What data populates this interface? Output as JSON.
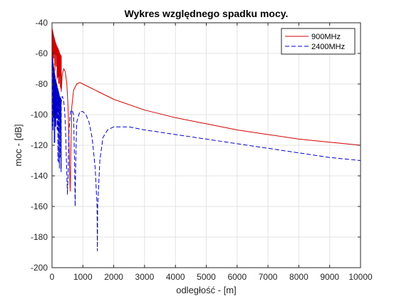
{
  "chart_data": {
    "type": "line",
    "title": "Wykres względnego spadku mocy.",
    "xlabel": "odległość - [m]",
    "ylabel": "moc - [dB]",
    "xlim": [
      0,
      10000
    ],
    "ylim": [
      -200,
      -40
    ],
    "xticks": [
      0,
      1000,
      2000,
      3000,
      4000,
      5000,
      6000,
      7000,
      8000,
      9000,
      10000
    ],
    "yticks": [
      -200,
      -180,
      -160,
      -140,
      -120,
      -100,
      -80,
      -60,
      -40
    ],
    "grid": true,
    "legend_position": "top-right",
    "series": [
      {
        "name": "900MHz",
        "color": "#d40000",
        "style": "solid",
        "envelope_start": [
          [
            10,
            -44
          ],
          [
            50,
            -48
          ],
          [
            100,
            -52
          ],
          [
            150,
            -55
          ],
          [
            200,
            -57
          ],
          [
            250,
            -60
          ],
          [
            300,
            -62
          ]
        ],
        "points": [
          [
            300,
            -85
          ],
          [
            330,
            -74
          ],
          [
            380,
            -70
          ],
          [
            430,
            -72
          ],
          [
            480,
            -80
          ],
          [
            520,
            -95
          ],
          [
            560,
            -125
          ],
          [
            580,
            -145
          ],
          [
            590,
            -150
          ],
          [
            600,
            -135
          ],
          [
            640,
            -95
          ],
          [
            700,
            -84
          ],
          [
            800,
            -80
          ],
          [
            900,
            -79
          ],
          [
            1000,
            -80
          ],
          [
            1500,
            -85
          ],
          [
            2000,
            -90
          ],
          [
            3000,
            -97
          ],
          [
            4000,
            -102
          ],
          [
            5000,
            -106
          ],
          [
            6000,
            -110
          ],
          [
            7000,
            -113
          ],
          [
            8000,
            -116
          ],
          [
            9000,
            -118
          ],
          [
            10000,
            -120
          ]
        ]
      },
      {
        "name": "2400MHz",
        "color": "#0000cc",
        "style": "dashed",
        "envelope_start": [
          [
            10,
            -62
          ],
          [
            50,
            -68
          ],
          [
            100,
            -75
          ],
          [
            150,
            -80
          ],
          [
            200,
            -84
          ],
          [
            250,
            -88
          ],
          [
            300,
            -90
          ]
        ],
        "points": [
          [
            300,
            -92
          ],
          [
            330,
            -88
          ],
          [
            370,
            -90
          ],
          [
            400,
            -95
          ],
          [
            430,
            -105
          ],
          [
            460,
            -125
          ],
          [
            480,
            -140
          ],
          [
            500,
            -152
          ],
          [
            520,
            -140
          ],
          [
            550,
            -110
          ],
          [
            600,
            -98
          ],
          [
            650,
            -97
          ],
          [
            700,
            -100
          ],
          [
            730,
            -130
          ],
          [
            750,
            -160
          ],
          [
            770,
            -130
          ],
          [
            800,
            -105
          ],
          [
            900,
            -98
          ],
          [
            1000,
            -98
          ],
          [
            1100,
            -100
          ],
          [
            1200,
            -105
          ],
          [
            1300,
            -115
          ],
          [
            1400,
            -135
          ],
          [
            1460,
            -160
          ],
          [
            1470,
            -189
          ],
          [
            1480,
            -160
          ],
          [
            1550,
            -130
          ],
          [
            1650,
            -115
          ],
          [
            1800,
            -110
          ],
          [
            2000,
            -108
          ],
          [
            2200,
            -108
          ],
          [
            2500,
            -108
          ],
          [
            3000,
            -110
          ],
          [
            4000,
            -113
          ],
          [
            5000,
            -116
          ],
          [
            6000,
            -119
          ],
          [
            7000,
            -122
          ],
          [
            8000,
            -125
          ],
          [
            9000,
            -128
          ],
          [
            10000,
            -130
          ]
        ]
      }
    ]
  }
}
